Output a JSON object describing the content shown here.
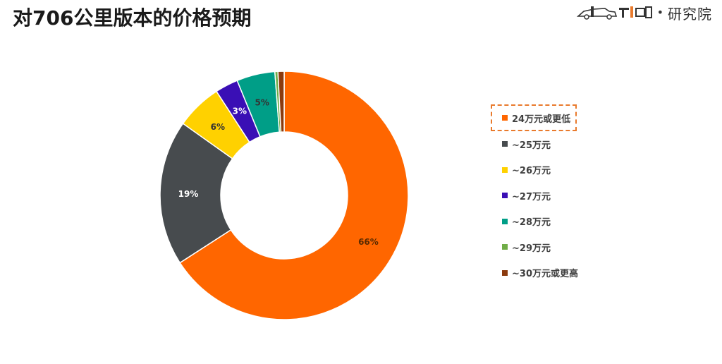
{
  "page": {
    "title": "对706公里版本的价格预期",
    "brand_text": "研究院"
  },
  "chart_data": {
    "type": "pie",
    "donut": true,
    "title": "对706公里版本的价格预期",
    "categories": [
      "24万元或更低",
      "~25万元",
      "~26万元",
      "~27万元",
      "~28万元",
      "~29万元",
      "~30万元或更高"
    ],
    "values": [
      66,
      19,
      6,
      3,
      5,
      0.4,
      0.8
    ],
    "data_labels": [
      "66%",
      "19%",
      "6%",
      "3%",
      "5%",
      "",
      ""
    ],
    "colors": [
      "#FF6600",
      "#474B4E",
      "#FFD100",
      "#3A0FB5",
      "#009E87",
      "#70AD47",
      "#8B3A0E"
    ],
    "label_colors": [
      "#5a2a00",
      "#ffffff",
      "#333333",
      "#ffffff",
      "#333333",
      "#333333",
      "#333333"
    ],
    "legend_position": "right",
    "legend_highlight": "24万元或更低"
  }
}
